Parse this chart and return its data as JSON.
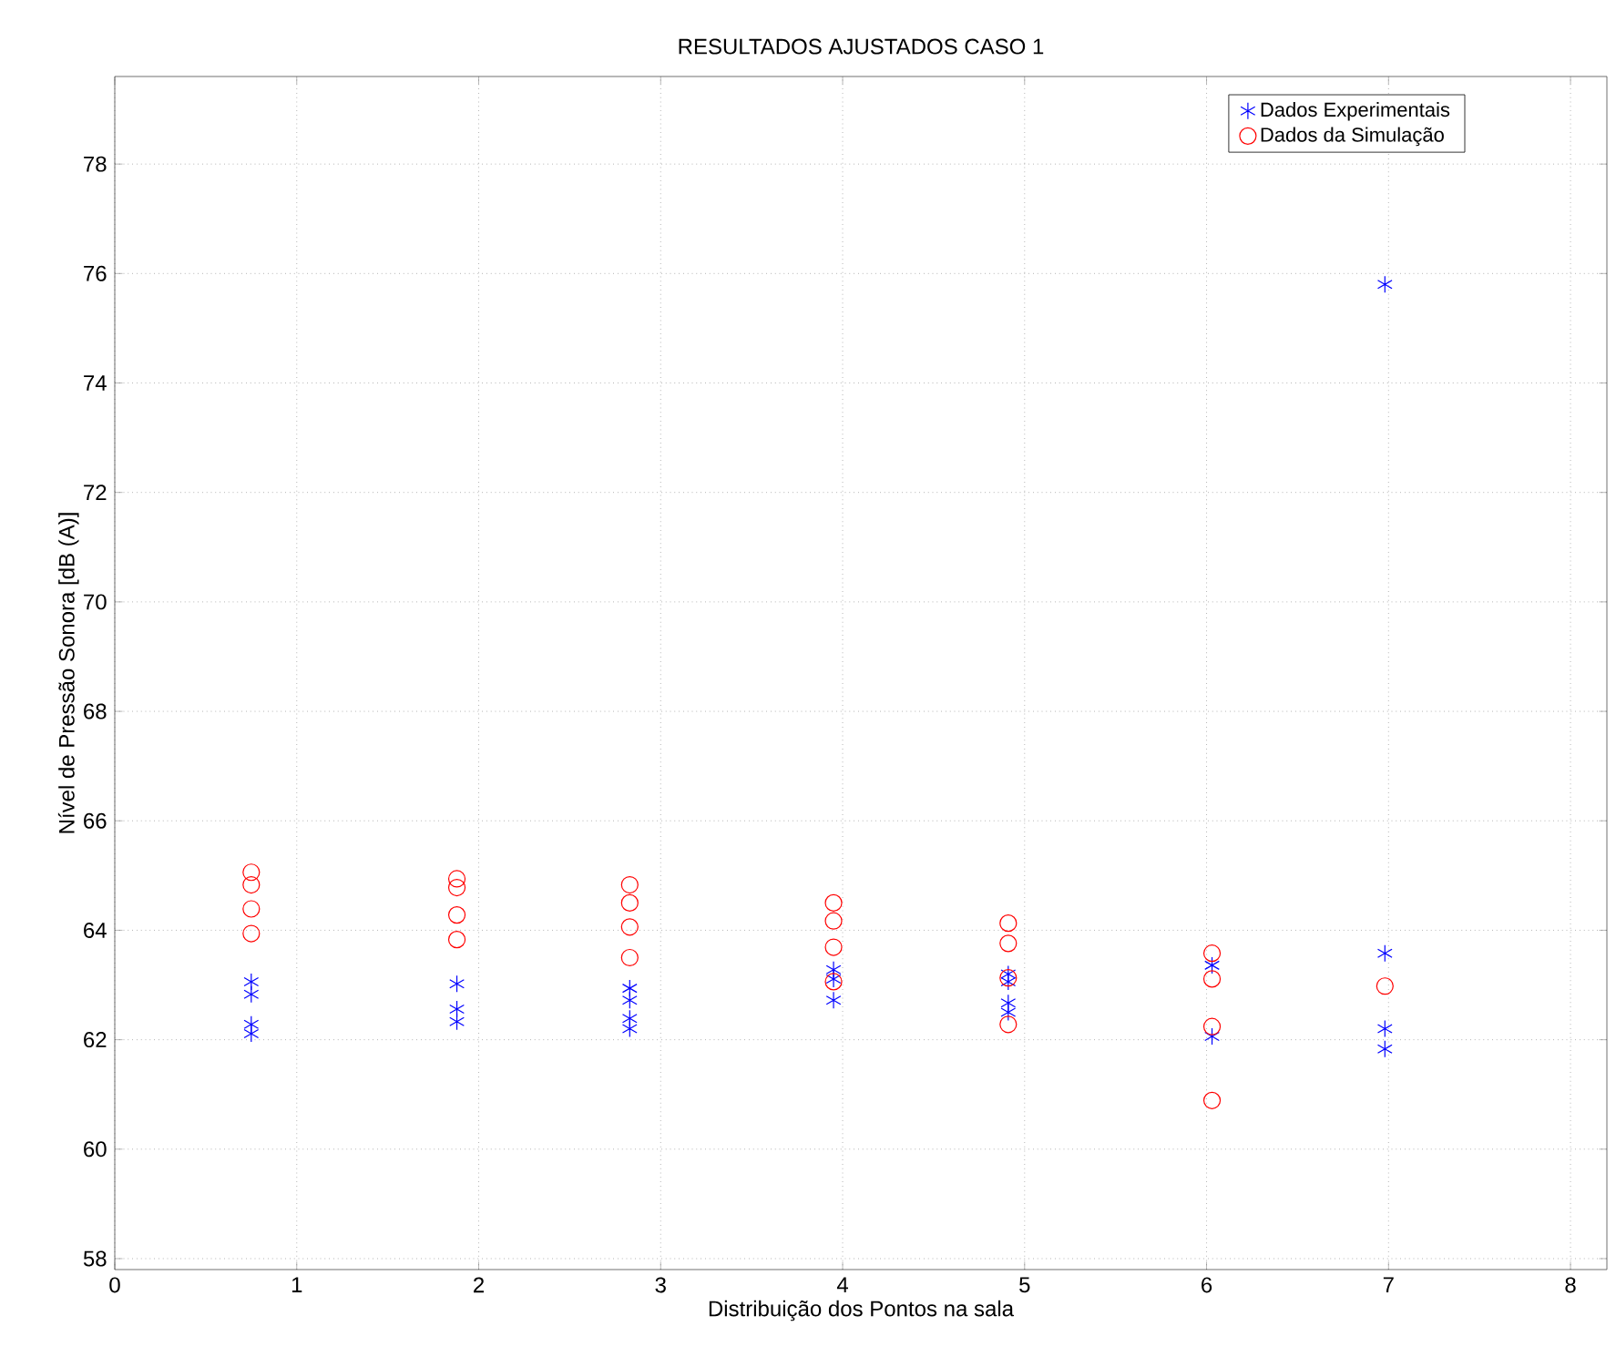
{
  "chart_data": {
    "type": "scatter",
    "title": "RESULTADOS AJUSTADOS CASO 1",
    "xlabel": "Distribuição dos Pontos na sala",
    "ylabel": "Nível de Pressão Sonora [dB (A)]",
    "xlim": [
      0,
      8.2
    ],
    "ylim": [
      57.8,
      79.6
    ],
    "xticks": [
      0,
      1,
      2,
      3,
      4,
      5,
      6,
      7,
      8
    ],
    "yticks": [
      58,
      60,
      62,
      64,
      66,
      68,
      70,
      72,
      74,
      76,
      78
    ],
    "grid": true,
    "legend": "top right",
    "series": [
      {
        "name": "Dados Experimentais",
        "color": "#0000ff",
        "marker": "cross",
        "x": [
          0.75,
          0.75,
          0.75,
          0.75,
          1.88,
          1.88,
          1.88,
          2.83,
          2.83,
          2.83,
          2.83,
          3.95,
          3.95,
          3.95,
          4.91,
          4.91,
          4.91,
          4.91,
          6.03,
          6.03,
          6.98,
          6.98,
          6.98,
          6.98
        ],
        "values": [
          63.06,
          62.83,
          62.28,
          62.11,
          63.02,
          62.56,
          62.33,
          62.94,
          62.72,
          62.39,
          62.2,
          63.28,
          63.11,
          62.72,
          63.2,
          63.06,
          62.67,
          62.5,
          63.36,
          62.06,
          75.8,
          63.58,
          62.2,
          61.83
        ]
      },
      {
        "name": "Dados da Simulação",
        "color": "#ff0000",
        "marker": "circle",
        "x": [
          0.75,
          0.75,
          0.75,
          0.75,
          1.88,
          1.88,
          1.88,
          1.88,
          2.83,
          2.83,
          2.83,
          2.83,
          3.95,
          3.95,
          3.95,
          3.95,
          4.91,
          4.91,
          4.91,
          4.91,
          6.03,
          6.03,
          6.03,
          6.03,
          6.98
        ],
        "values": [
          65.06,
          64.83,
          64.39,
          63.94,
          64.94,
          64.78,
          64.28,
          63.83,
          64.83,
          64.5,
          64.06,
          63.5,
          64.5,
          64.17,
          63.69,
          63.06,
          64.13,
          63.76,
          63.13,
          62.28,
          63.58,
          63.11,
          62.24,
          60.89,
          62.98
        ]
      }
    ]
  }
}
